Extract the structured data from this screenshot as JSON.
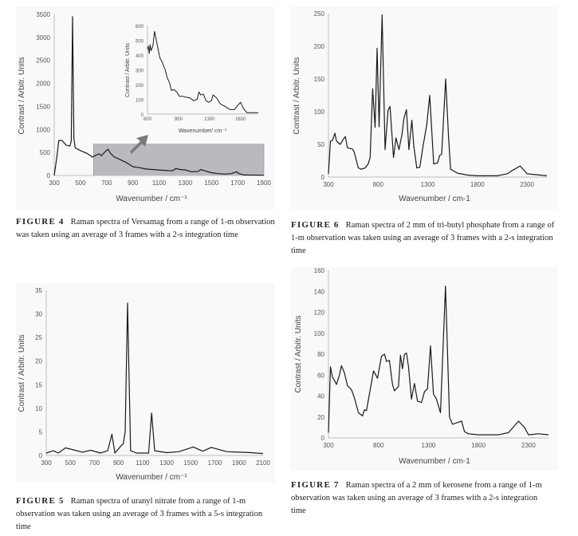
{
  "chart_data": [
    {
      "id": "fig4",
      "type": "line",
      "xlabel": "Wavenumber / cm⁻¹",
      "ylabel": "Contrast / Arbitr. Units",
      "xlim": [
        300,
        1900
      ],
      "ylim": [
        0,
        3500
      ],
      "xticks": [
        300,
        500,
        700,
        900,
        1100,
        1300,
        1500,
        1700,
        1900
      ],
      "yticks": [
        0,
        500,
        1000,
        1500,
        2000,
        2500,
        3000,
        3500
      ],
      "highlight_region": {
        "x": [
          600,
          1900
        ],
        "y": [
          0,
          680
        ],
        "color": "#b9babd"
      },
      "line_color": "#1a1a1a",
      "points": [
        [
          300,
          0
        ],
        [
          320,
          400
        ],
        [
          335,
          760
        ],
        [
          360,
          760
        ],
        [
          390,
          660
        ],
        [
          420,
          640
        ],
        [
          430,
          750
        ],
        [
          440,
          3450
        ],
        [
          450,
          800
        ],
        [
          460,
          600
        ],
        [
          500,
          540
        ],
        [
          550,
          480
        ],
        [
          590,
          400
        ],
        [
          620,
          440
        ],
        [
          640,
          470
        ],
        [
          660,
          430
        ],
        [
          690,
          520
        ],
        [
          710,
          570
        ],
        [
          730,
          480
        ],
        [
          760,
          400
        ],
        [
          800,
          350
        ],
        [
          850,
          280
        ],
        [
          900,
          190
        ],
        [
          950,
          170
        ],
        [
          1000,
          140
        ],
        [
          1100,
          120
        ],
        [
          1200,
          100
        ],
        [
          1230,
          150
        ],
        [
          1260,
          130
        ],
        [
          1300,
          120
        ],
        [
          1350,
          80
        ],
        [
          1400,
          90
        ],
        [
          1420,
          130
        ],
        [
          1450,
          100
        ],
        [
          1500,
          60
        ],
        [
          1550,
          40
        ],
        [
          1600,
          30
        ],
        [
          1650,
          40
        ],
        [
          1690,
          80
        ],
        [
          1710,
          40
        ],
        [
          1750,
          10
        ],
        [
          1900,
          5
        ]
      ]
    },
    {
      "id": "fig4-inset",
      "type": "line",
      "xlabel": "Wavenumber/ cm⁻¹",
      "ylabel": "Contrast / Arbitr. Units",
      "xlim": [
        600,
        1850
      ],
      "ylim": [
        0,
        600
      ],
      "xticks": [
        600,
        950,
        1300,
        1650
      ],
      "yticks": [
        0,
        100,
        200,
        300,
        400,
        500,
        600
      ],
      "line_color": "#1a1a1a",
      "points": [
        [
          600,
          440
        ],
        [
          610,
          460
        ],
        [
          620,
          410
        ],
        [
          630,
          470
        ],
        [
          640,
          430
        ],
        [
          660,
          460
        ],
        [
          680,
          560
        ],
        [
          700,
          500
        ],
        [
          720,
          440
        ],
        [
          740,
          380
        ],
        [
          760,
          360
        ],
        [
          780,
          330
        ],
        [
          800,
          300
        ],
        [
          820,
          250
        ],
        [
          850,
          210
        ],
        [
          870,
          160
        ],
        [
          900,
          165
        ],
        [
          930,
          150
        ],
        [
          960,
          120
        ],
        [
          1000,
          120
        ],
        [
          1030,
          115
        ],
        [
          1080,
          110
        ],
        [
          1120,
          90
        ],
        [
          1160,
          100
        ],
        [
          1180,
          150
        ],
        [
          1200,
          130
        ],
        [
          1230,
          135
        ],
        [
          1260,
          90
        ],
        [
          1290,
          80
        ],
        [
          1320,
          90
        ],
        [
          1340,
          130
        ],
        [
          1380,
          110
        ],
        [
          1420,
          70
        ],
        [
          1480,
          50
        ],
        [
          1530,
          30
        ],
        [
          1580,
          30
        ],
        [
          1620,
          60
        ],
        [
          1650,
          80
        ],
        [
          1680,
          40
        ],
        [
          1720,
          10
        ],
        [
          1850,
          10
        ]
      ]
    },
    {
      "id": "fig6",
      "type": "line",
      "xlabel": "Wavenumber / cm-1",
      "ylabel": "Contrast / Arbitr. Units",
      "xlim": [
        300,
        2500
      ],
      "ylim": [
        0,
        250
      ],
      "xticks": [
        300,
        800,
        1300,
        1800,
        2300
      ],
      "yticks": [
        0,
        50,
        100,
        150,
        200,
        250
      ],
      "line_color": "#1a1a1a",
      "points": [
        [
          300,
          5
        ],
        [
          320,
          55
        ],
        [
          340,
          56
        ],
        [
          365,
          67
        ],
        [
          380,
          55
        ],
        [
          420,
          50
        ],
        [
          450,
          58
        ],
        [
          470,
          62
        ],
        [
          490,
          45
        ],
        [
          510,
          44
        ],
        [
          540,
          43
        ],
        [
          560,
          38
        ],
        [
          600,
          14
        ],
        [
          630,
          12
        ],
        [
          670,
          14
        ],
        [
          700,
          20
        ],
        [
          720,
          30
        ],
        [
          745,
          135
        ],
        [
          770,
          76
        ],
        [
          790,
          197
        ],
        [
          810,
          77
        ],
        [
          840,
          248
        ],
        [
          870,
          42
        ],
        [
          900,
          102
        ],
        [
          920,
          108
        ],
        [
          955,
          30
        ],
        [
          980,
          60
        ],
        [
          1010,
          42
        ],
        [
          1040,
          65
        ],
        [
          1060,
          90
        ],
        [
          1085,
          103
        ],
        [
          1110,
          42
        ],
        [
          1140,
          87
        ],
        [
          1160,
          47
        ],
        [
          1190,
          14
        ],
        [
          1220,
          15
        ],
        [
          1250,
          45
        ],
        [
          1290,
          80
        ],
        [
          1320,
          125
        ],
        [
          1360,
          20
        ],
        [
          1400,
          22
        ],
        [
          1420,
          33
        ],
        [
          1440,
          35
        ],
        [
          1480,
          150
        ],
        [
          1510,
          60
        ],
        [
          1530,
          12
        ],
        [
          1600,
          6
        ],
        [
          1700,
          3
        ],
        [
          1800,
          2
        ],
        [
          1900,
          2
        ],
        [
          2000,
          2
        ],
        [
          2100,
          5
        ],
        [
          2150,
          10
        ],
        [
          2230,
          17
        ],
        [
          2300,
          5
        ],
        [
          2500,
          2
        ]
      ]
    },
    {
      "id": "fig5",
      "type": "line",
      "xlabel": "Wavenumber / cm⁻¹",
      "ylabel": "Contrast / Arbitr. Units",
      "xlim": [
        300,
        2100
      ],
      "ylim": [
        0,
        35
      ],
      "xticks": [
        300,
        500,
        700,
        900,
        1100,
        1300,
        1500,
        1700,
        1900,
        2100
      ],
      "yticks": [
        0,
        5,
        10,
        15,
        20,
        25,
        30,
        35
      ],
      "line_color": "#1a1a1a",
      "points": [
        [
          300,
          0.5
        ],
        [
          360,
          1
        ],
        [
          400,
          0.5
        ],
        [
          460,
          1.6
        ],
        [
          540,
          1.1
        ],
        [
          600,
          0.7
        ],
        [
          670,
          1.1
        ],
        [
          750,
          0.5
        ],
        [
          810,
          1
        ],
        [
          845,
          4.5
        ],
        [
          870,
          0.5
        ],
        [
          920,
          2
        ],
        [
          940,
          2.5
        ],
        [
          955,
          5
        ],
        [
          975,
          32.3
        ],
        [
          1000,
          1
        ],
        [
          1050,
          0.5
        ],
        [
          1150,
          0.5
        ],
        [
          1175,
          9
        ],
        [
          1200,
          1
        ],
        [
          1300,
          0.6
        ],
        [
          1400,
          0.8
        ],
        [
          1520,
          1.8
        ],
        [
          1600,
          0.9
        ],
        [
          1670,
          1.7
        ],
        [
          1800,
          0.8
        ],
        [
          1900,
          0.7
        ],
        [
          2000,
          0.6
        ],
        [
          2100,
          0.4
        ]
      ]
    },
    {
      "id": "fig7",
      "type": "line",
      "xlabel": "Wavenumber / cm-1",
      "ylabel": "Contrast / Arbitr. Units",
      "xlim": [
        300,
        2500
      ],
      "ylim": [
        0,
        160
      ],
      "xticks": [
        300,
        800,
        1300,
        1800,
        2300
      ],
      "yticks": [
        0,
        20,
        40,
        60,
        80,
        100,
        120,
        140,
        160
      ],
      "line_color": "#1a1a1a",
      "points": [
        [
          300,
          5
        ],
        [
          320,
          68
        ],
        [
          340,
          58
        ],
        [
          360,
          55
        ],
        [
          380,
          51
        ],
        [
          410,
          60
        ],
        [
          430,
          69
        ],
        [
          460,
          62
        ],
        [
          490,
          50
        ],
        [
          530,
          46
        ],
        [
          560,
          38
        ],
        [
          600,
          24
        ],
        [
          640,
          21
        ],
        [
          660,
          27
        ],
        [
          680,
          26
        ],
        [
          750,
          64
        ],
        [
          790,
          57
        ],
        [
          830,
          78
        ],
        [
          860,
          80
        ],
        [
          880,
          73
        ],
        [
          910,
          74
        ],
        [
          940,
          51
        ],
        [
          960,
          45
        ],
        [
          1000,
          49
        ],
        [
          1020,
          79
        ],
        [
          1040,
          66
        ],
        [
          1060,
          80
        ],
        [
          1080,
          81
        ],
        [
          1100,
          68
        ],
        [
          1130,
          37
        ],
        [
          1160,
          52
        ],
        [
          1190,
          35
        ],
        [
          1230,
          34
        ],
        [
          1260,
          44
        ],
        [
          1290,
          47
        ],
        [
          1320,
          88
        ],
        [
          1350,
          42
        ],
        [
          1380,
          37
        ],
        [
          1420,
          24
        ],
        [
          1470,
          145
        ],
        [
          1510,
          20
        ],
        [
          1540,
          13
        ],
        [
          1600,
          15
        ],
        [
          1630,
          16
        ],
        [
          1660,
          6
        ],
        [
          1700,
          4
        ],
        [
          1800,
          3
        ],
        [
          1900,
          3
        ],
        [
          2000,
          3
        ],
        [
          2100,
          5
        ],
        [
          2200,
          16
        ],
        [
          2260,
          10
        ],
        [
          2300,
          3
        ],
        [
          2400,
          4
        ],
        [
          2500,
          3
        ]
      ]
    }
  ],
  "captions": {
    "fig4": {
      "label": "FIGURE 4",
      "text": "Raman spectra of Versamag from a range of 1-m observation was taken using an average of 3 frames with a 2-s integration time"
    },
    "fig6": {
      "label": "FIGURE 6",
      "text": "Raman spectra of 2 mm of tri-butyl phosphate from a range of 1-m observation was taken using an average of 3 frames with a 2-s integration time"
    },
    "fig5": {
      "label": "FIGURE 5",
      "text": "Raman spectra of uranyl nitrate from a range of 1-m observation was taken using an average of 3 frames with a 5-s integration time"
    },
    "fig7": {
      "label": "FIGURE 7",
      "text": "Raman spectra of a 2 mm of kerosene from a range of 1-m observation was taken using an average of 3 frames with a 2-s integration time"
    }
  },
  "colors": {
    "arrow": "#7a7a7a",
    "axis": "#bdbdbd"
  }
}
